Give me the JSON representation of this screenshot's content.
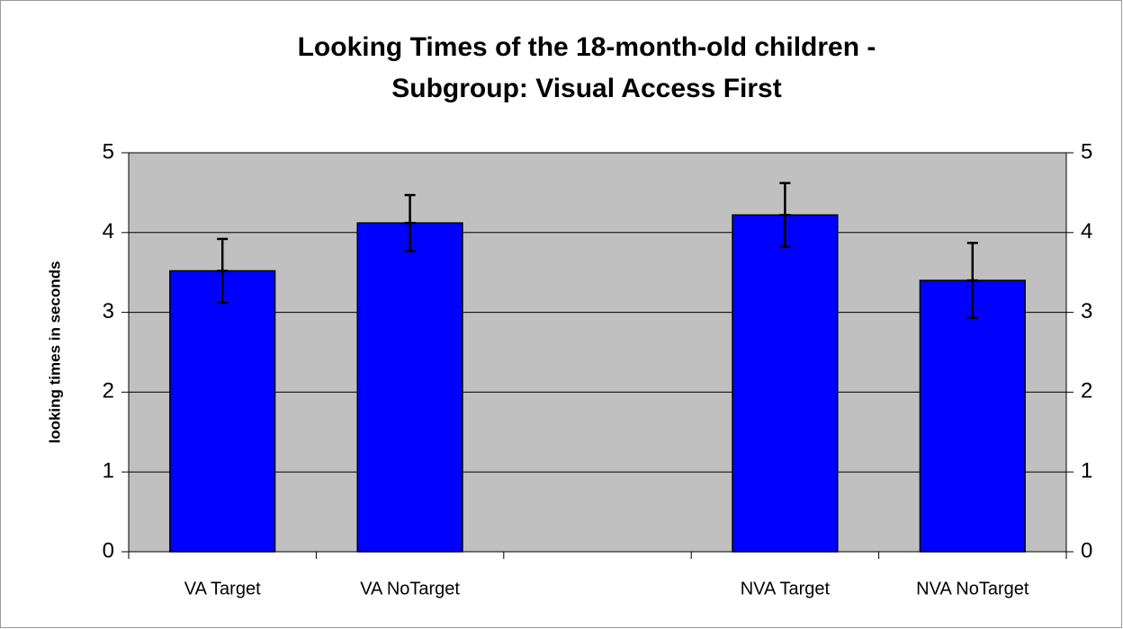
{
  "chart_data": {
    "type": "bar",
    "title": [
      "Looking Times of the 18-month-old children -",
      "Subgroup: Visual Access First"
    ],
    "y_label": "looking times in seconds",
    "categories": [
      "VA Target",
      "VA NoTarget",
      null,
      "NVA Target",
      "NVA NoTarget"
    ],
    "values": [
      3.52,
      4.12,
      null,
      4.22,
      3.4
    ],
    "errors": [
      0.4,
      0.35,
      null,
      0.4,
      0.47
    ],
    "color": "#0000ff",
    "plot_background": "#c0c0c0",
    "ylim": [
      0,
      5
    ],
    "yticks": [
      0,
      1,
      2,
      3,
      4,
      5
    ],
    "y2lim": [
      0,
      5
    ],
    "y2ticks": [
      0,
      1,
      2,
      3,
      4,
      5
    ],
    "grid": true
  }
}
